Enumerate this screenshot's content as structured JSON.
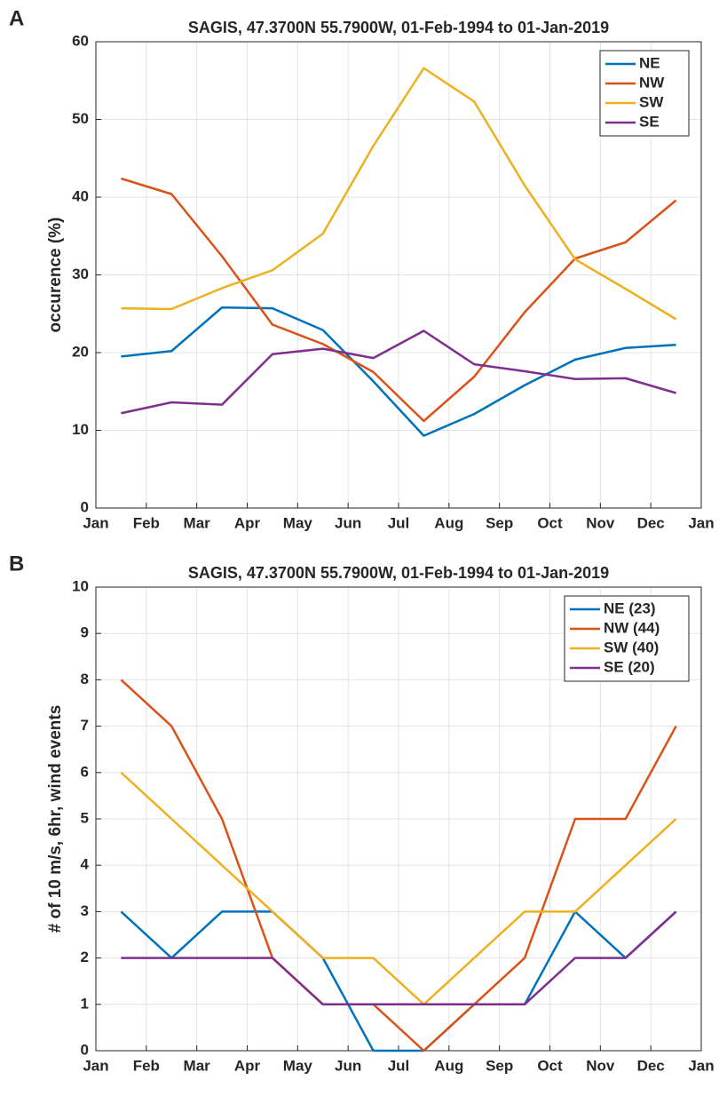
{
  "chart_data": [
    {
      "type": "line",
      "panel": "A",
      "title": "SAGIS, 47.3700N 55.7900W, 01-Feb-1994 to 01-Jan-2019",
      "ylabel": "occurence (%)",
      "x": [
        0.5,
        1.5,
        2.5,
        3.5,
        4.5,
        5.5,
        6.5,
        7.5,
        8.5,
        9.5,
        10.5,
        11.5
      ],
      "xlim": [
        0,
        12
      ],
      "xticks": [
        {
          "value": 0,
          "label": "Jan"
        },
        {
          "value": 1,
          "label": "Feb"
        },
        {
          "value": 2,
          "label": "Mar"
        },
        {
          "value": 3,
          "label": "Apr"
        },
        {
          "value": 4,
          "label": "May"
        },
        {
          "value": 5,
          "label": "Jun"
        },
        {
          "value": 6,
          "label": "Jul"
        },
        {
          "value": 7,
          "label": "Aug"
        },
        {
          "value": 8,
          "label": "Sep"
        },
        {
          "value": 9,
          "label": "Oct"
        },
        {
          "value": 10,
          "label": "Nov"
        },
        {
          "value": 11,
          "label": "Dec"
        },
        {
          "value": 12,
          "label": "Jan"
        }
      ],
      "ylim": [
        0,
        60
      ],
      "yticks": [
        0,
        10,
        20,
        30,
        40,
        50,
        60
      ],
      "grid": true,
      "legend": "upper-right",
      "series": [
        {
          "name": "NE",
          "color": "#0072bd",
          "values": [
            19.5,
            20.2,
            25.8,
            25.7,
            22.9,
            16.3,
            9.3,
            12.1,
            15.8,
            19.1,
            20.6,
            21.0
          ]
        },
        {
          "name": "NW",
          "color": "#d95319",
          "values": [
            42.4,
            40.4,
            32.4,
            23.6,
            21.1,
            17.5,
            11.2,
            16.9,
            25.2,
            32.1,
            34.2,
            39.6
          ]
        },
        {
          "name": "SW",
          "color": "#edb120",
          "values": [
            25.7,
            25.6,
            28.3,
            30.6,
            35.3,
            46.6,
            56.6,
            52.3,
            41.5,
            32.0,
            28.2,
            24.3
          ]
        },
        {
          "name": "SE",
          "color": "#7e2f8e",
          "values": [
            12.2,
            13.6,
            13.3,
            19.8,
            20.5,
            19.3,
            22.8,
            18.5,
            17.6,
            16.6,
            16.7,
            14.8
          ]
        }
      ]
    },
    {
      "type": "line",
      "panel": "B",
      "title": "SAGIS, 47.3700N 55.7900W, 01-Feb-1994 to 01-Jan-2019",
      "ylabel": "# of 10 m/s, 6hr, wind events",
      "x": [
        0.5,
        1.5,
        2.5,
        3.5,
        4.5,
        5.5,
        6.5,
        7.5,
        8.5,
        9.5,
        10.5,
        11.5
      ],
      "xlim": [
        0,
        12
      ],
      "xticks": [
        {
          "value": 0,
          "label": "Jan"
        },
        {
          "value": 1,
          "label": "Feb"
        },
        {
          "value": 2,
          "label": "Mar"
        },
        {
          "value": 3,
          "label": "Apr"
        },
        {
          "value": 4,
          "label": "May"
        },
        {
          "value": 5,
          "label": "Jun"
        },
        {
          "value": 6,
          "label": "Jul"
        },
        {
          "value": 7,
          "label": "Aug"
        },
        {
          "value": 8,
          "label": "Sep"
        },
        {
          "value": 9,
          "label": "Oct"
        },
        {
          "value": 10,
          "label": "Nov"
        },
        {
          "value": 11,
          "label": "Dec"
        },
        {
          "value": 12,
          "label": "Jan"
        }
      ],
      "ylim": [
        0,
        10
      ],
      "yticks": [
        0,
        1,
        2,
        3,
        4,
        5,
        6,
        7,
        8,
        9,
        10
      ],
      "grid": true,
      "legend": "upper-right",
      "series": [
        {
          "name": "NE (23)",
          "color": "#0072bd",
          "values": [
            3,
            2,
            3,
            3,
            2,
            0,
            0,
            1,
            1,
            3,
            2,
            3
          ]
        },
        {
          "name": "NW (44)",
          "color": "#d95319",
          "values": [
            8,
            7,
            5,
            2,
            1,
            1,
            0,
            1,
            2,
            5,
            5,
            7
          ]
        },
        {
          "name": "SW (40)",
          "color": "#edb120",
          "values": [
            6,
            5,
            4,
            3,
            2,
            2,
            1,
            2,
            3,
            3,
            4,
            5
          ]
        },
        {
          "name": "SE (20)",
          "color": "#7e2f8e",
          "values": [
            2,
            2,
            2,
            2,
            1,
            1,
            1,
            1,
            1,
            2,
            2,
            3
          ]
        }
      ]
    }
  ]
}
